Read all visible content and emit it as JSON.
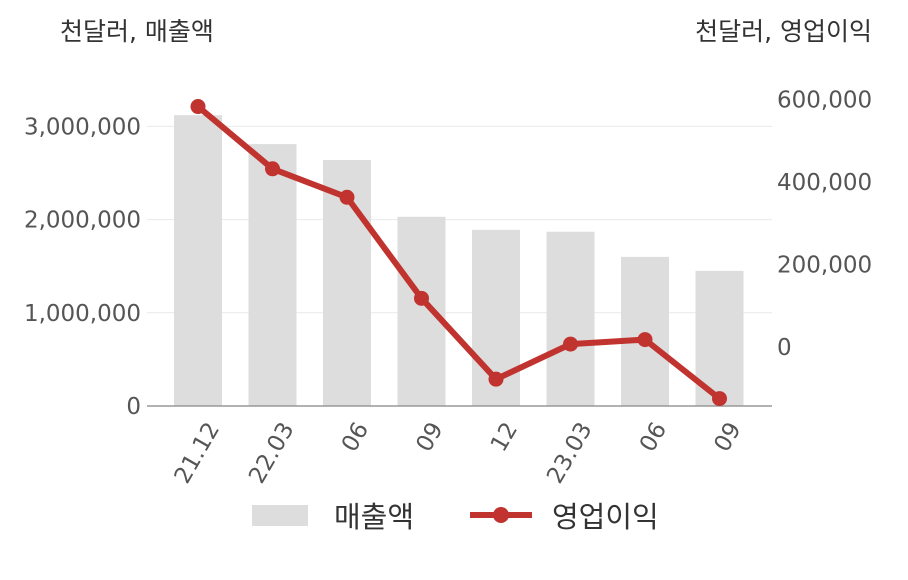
{
  "units": {
    "left": "천달러, 매출액",
    "right": "천달러, 영업이익"
  },
  "legend": {
    "bar_label": "매출액",
    "line_label": "영업이익"
  },
  "colors": {
    "bar": "#dddddd",
    "line": "#c0332f",
    "axis": "#999999",
    "grid": "#e9e9e9",
    "text": "#555555"
  },
  "chart_data": {
    "type": "bar",
    "categories": [
      "21.12",
      "22.03",
      "06",
      "09",
      "12",
      "23.03",
      "06",
      "09"
    ],
    "series": [
      {
        "name": "매출액",
        "type": "bar",
        "axis": "left",
        "values": [
          3120000,
          2810000,
          2640000,
          2030000,
          1890000,
          1870000,
          1600000,
          1450000
        ]
      },
      {
        "name": "영업이익",
        "type": "line",
        "axis": "right",
        "values": [
          583000,
          432000,
          363000,
          118000,
          -78000,
          7000,
          18000,
          -125000
        ]
      }
    ],
    "y_left": {
      "ticks": [
        0,
        1000000,
        2000000,
        3000000
      ],
      "tick_labels": [
        "0",
        "1,000,000",
        "2,000,000",
        "3,000,000"
      ],
      "range": [
        0,
        3400000
      ]
    },
    "y_right": {
      "ticks": [
        0,
        200000,
        400000,
        600000
      ],
      "tick_labels": [
        "0",
        "200,000",
        "400,000",
        "600,000"
      ]
    },
    "grid": true,
    "legend_position": "bottom"
  }
}
